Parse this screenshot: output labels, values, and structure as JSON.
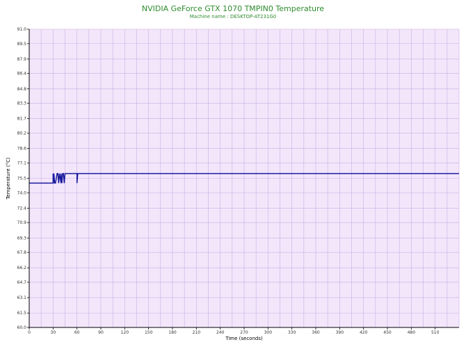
{
  "colors": {
    "title": "#2e8b2e",
    "plot_background": "#f3e6fb",
    "grid": "#c9aee0",
    "series": "#1a1a9e",
    "axis": "#000000"
  },
  "chart_data": {
    "type": "line",
    "title": "NVIDIA GeForce GTX 1070 TMPIN0 Temperature",
    "subtitle": "Machine name : DESKTOP-AT231G0",
    "xlabel": "Time (seconds)",
    "ylabel": "Temperature (°C)",
    "xlim": [
      0,
      540
    ],
    "ylim": [
      60.0,
      91.0
    ],
    "x_ticks": [
      0,
      30,
      60,
      90,
      120,
      150,
      180,
      210,
      240,
      270,
      300,
      330,
      360,
      390,
      420,
      450,
      480,
      510
    ],
    "y_ticks": [
      "60.0",
      "61.5",
      "63.1",
      "64.7",
      "66.2",
      "67.8",
      "69.3",
      "70.9",
      "72.4",
      "74.0",
      "75.5",
      "77.1",
      "78.6",
      "80.2",
      "81.7",
      "83.3",
      "84.8",
      "86.4",
      "87.9",
      "89.5",
      "91.0"
    ],
    "grid": true,
    "series": [
      {
        "values": [
          [
            0,
            75.0
          ],
          [
            30,
            75.0
          ],
          [
            30,
            76.0
          ],
          [
            30.5,
            75.0
          ],
          [
            31,
            76.0
          ],
          [
            32,
            75.0
          ],
          [
            33,
            75.0
          ],
          [
            35,
            76.0
          ],
          [
            36,
            76.0
          ],
          [
            37,
            75.0
          ],
          [
            38,
            76.0
          ],
          [
            40,
            75.0
          ],
          [
            40,
            76.0
          ],
          [
            41,
            75.0
          ],
          [
            42,
            76.0
          ],
          [
            43,
            76.0
          ],
          [
            44,
            75.0
          ],
          [
            45,
            76.0
          ],
          [
            46,
            76.0
          ],
          [
            60,
            76.0
          ],
          [
            60,
            75.0
          ],
          [
            61,
            76.0
          ],
          [
            540,
            76.0
          ]
        ]
      }
    ]
  }
}
